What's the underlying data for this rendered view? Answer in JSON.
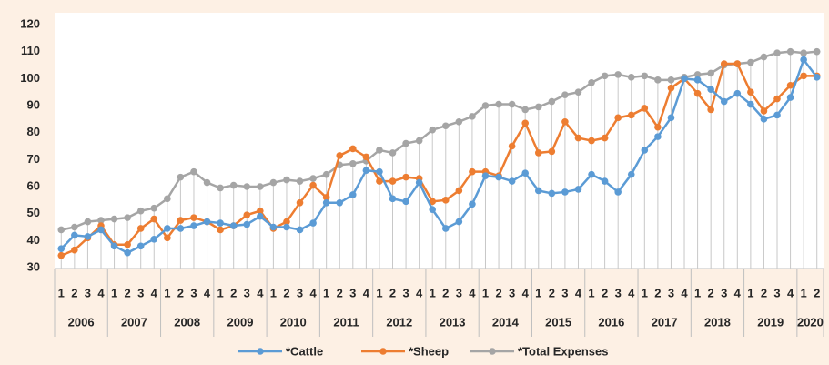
{
  "chart_data": {
    "type": "line",
    "quarters": [
      "1",
      "2",
      "3",
      "4",
      "1",
      "2",
      "3",
      "4",
      "1",
      "2",
      "3",
      "4",
      "1",
      "2",
      "3",
      "4",
      "1",
      "2",
      "3",
      "4",
      "1",
      "2",
      "3",
      "4",
      "1",
      "2",
      "3",
      "4",
      "1",
      "2",
      "3",
      "4",
      "1",
      "2",
      "3",
      "4",
      "1",
      "2",
      "3",
      "4",
      "1",
      "2",
      "3",
      "4",
      "1",
      "2",
      "3",
      "4",
      "1",
      "2",
      "3",
      "4",
      "1",
      "2",
      "3",
      "4",
      "1",
      "2"
    ],
    "years": [
      "2006",
      "2007",
      "2008",
      "2009",
      "2010",
      "2011",
      "2012",
      "2013",
      "2014",
      "2015",
      "2016",
      "2017",
      "2018",
      "2019",
      "2020"
    ],
    "series": [
      {
        "name": "*Cattle",
        "color": "#5b9bd5",
        "values": [
          37,
          42,
          41.5,
          44,
          38,
          35.5,
          38,
          40.5,
          44.5,
          44.5,
          45.5,
          47,
          46.5,
          45.5,
          46,
          49,
          45,
          45,
          44,
          46.5,
          54,
          54,
          57,
          66,
          65.5,
          55.5,
          54.5,
          61.5,
          51.5,
          44.5,
          47,
          53.5,
          64,
          63.5,
          62,
          65,
          58.5,
          57.5,
          58,
          59,
          64.5,
          62,
          58,
          64.5,
          73.5,
          78.5,
          85.5,
          100,
          99.5,
          96,
          91.5,
          94.5,
          90.5,
          85,
          86.5,
          93,
          107,
          100.5
        ]
      },
      {
        "name": "*Sheep",
        "color": "#ed7d31",
        "values": [
          34.5,
          36.5,
          41,
          45.5,
          38.5,
          38.5,
          44.5,
          48,
          41,
          47.5,
          48.5,
          47,
          44,
          45.5,
          49.5,
          51,
          44.5,
          47,
          54,
          60.5,
          56,
          71.5,
          74,
          71,
          62,
          62,
          63.5,
          63,
          54.5,
          55,
          58.5,
          65.5,
          65.5,
          64,
          75,
          83.5,
          72.5,
          73,
          84,
          78,
          77,
          78,
          85.5,
          86.5,
          89,
          82,
          96.5,
          100,
          94.5,
          88.5,
          105.5,
          105.5,
          95,
          88,
          92.5,
          97.5,
          101,
          101
        ]
      },
      {
        "name": "*Total Expenses",
        "color": "#a5a5a5",
        "values": [
          44,
          45,
          47,
          47.5,
          48,
          48.5,
          51,
          52,
          55.5,
          63.5,
          65.5,
          61.5,
          59.5,
          60.5,
          60,
          60,
          61.5,
          62.5,
          62,
          63,
          64.5,
          68,
          68.5,
          69.5,
          73.5,
          72.5,
          76,
          77,
          81,
          82.5,
          84,
          86,
          90,
          90.5,
          90.5,
          88.5,
          89.5,
          91.5,
          94,
          95,
          98.5,
          101,
          101.5,
          100.5,
          101,
          99.5,
          99.5,
          100.5,
          101.5,
          102,
          105,
          105.5,
          106,
          108,
          109.5,
          110,
          109.5,
          110
        ]
      }
    ],
    "drop_lines": true,
    "ylim": [
      30,
      120
    ],
    "yticks": [
      30,
      40,
      50,
      60,
      70,
      80,
      90,
      100,
      110,
      120
    ]
  }
}
